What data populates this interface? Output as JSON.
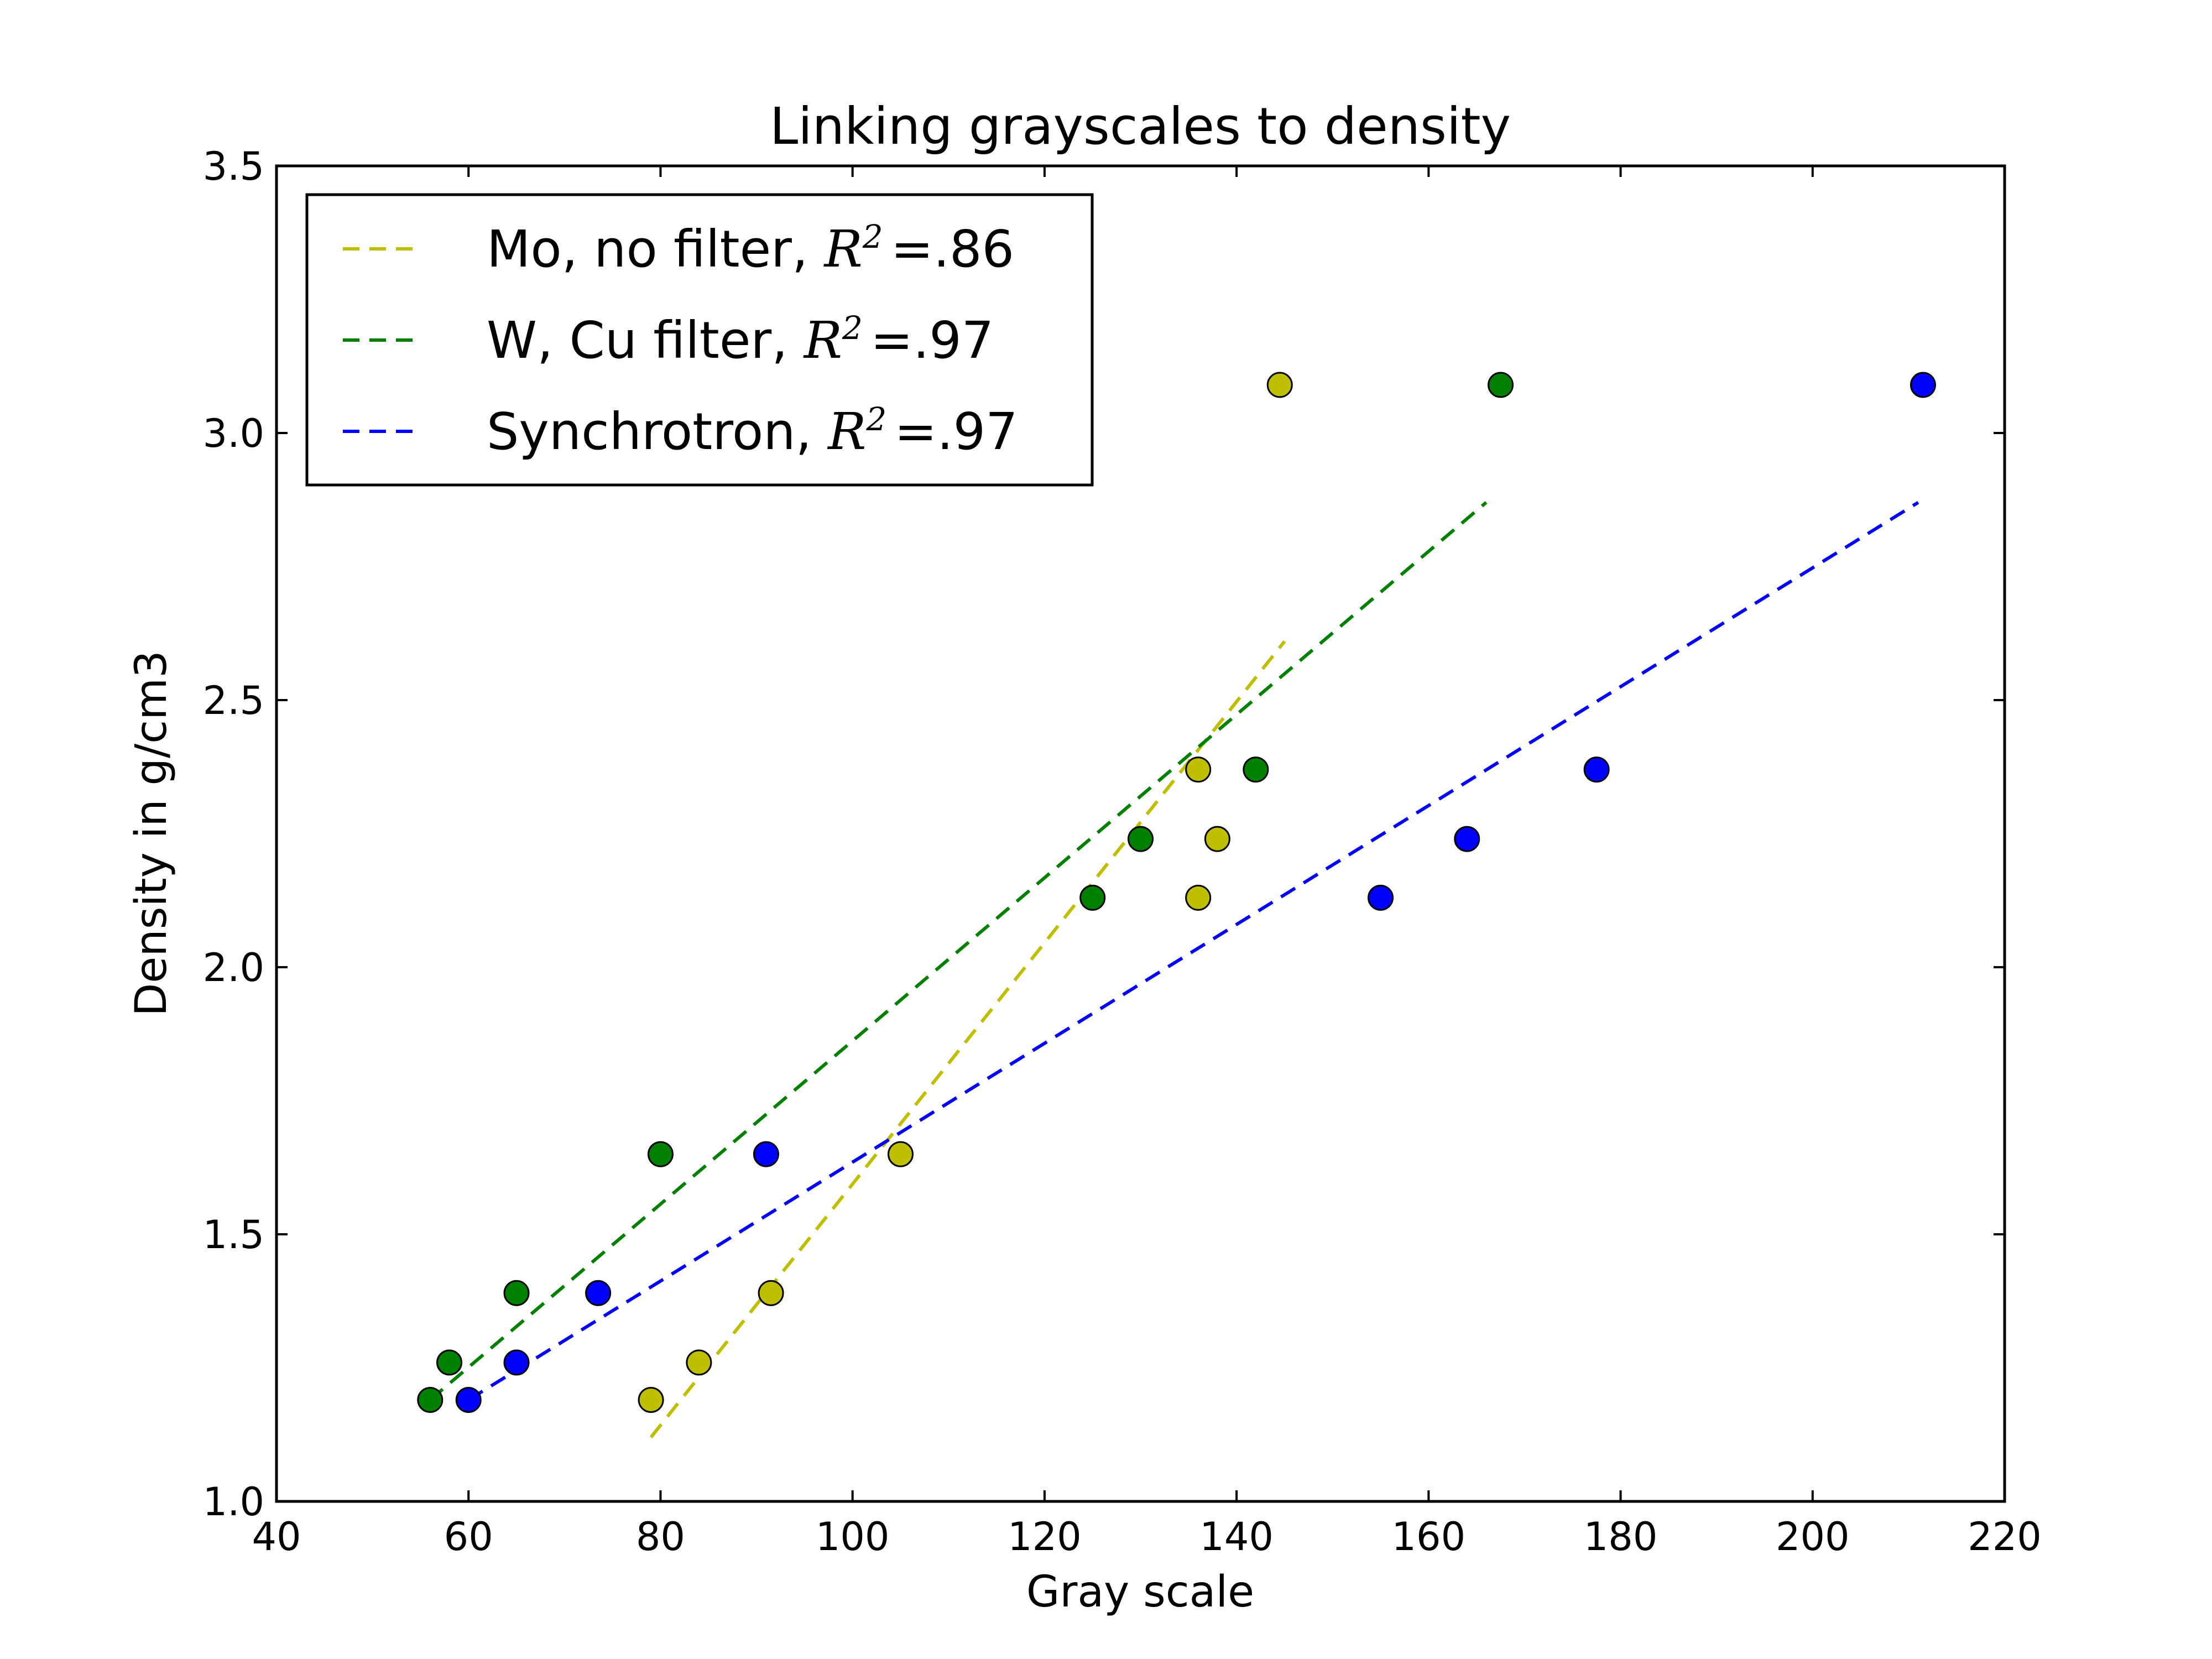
{
  "chart_data": {
    "type": "scatter",
    "title": "Linking grayscales to density",
    "xlabel": "Gray scale",
    "ylabel": "Density in g/cm3",
    "xlim": [
      40,
      220
    ],
    "ylim": [
      1.0,
      3.5
    ],
    "xticks": [
      "40",
      "60",
      "80",
      "100",
      "120",
      "140",
      "160",
      "180",
      "200",
      "220"
    ],
    "yticks": [
      "1.0",
      "1.5",
      "2.0",
      "2.5",
      "3.0",
      "3.5"
    ],
    "legend_position": "upper-left",
    "series": [
      {
        "name": "Mo, no filter",
        "r2_label": "R",
        "r2_exp": "2",
        "r2_value": "=.86",
        "color": "#bfbf00",
        "points": [
          {
            "x": 79,
            "y": 1.19
          },
          {
            "x": 84,
            "y": 1.26
          },
          {
            "x": 91.5,
            "y": 1.39
          },
          {
            "x": 105,
            "y": 1.65
          },
          {
            "x": 136,
            "y": 2.13
          },
          {
            "x": 138,
            "y": 2.24
          },
          {
            "x": 136,
            "y": 2.37
          },
          {
            "x": 144.5,
            "y": 3.09
          }
        ],
        "fit": [
          [
            79,
            1.12
          ],
          [
            145,
            2.61
          ]
        ]
      },
      {
        "name": "W, Cu filter",
        "r2_label": "R",
        "r2_exp": "2",
        "r2_value": "=.97",
        "color": "#008000",
        "points": [
          {
            "x": 56,
            "y": 1.19
          },
          {
            "x": 58,
            "y": 1.26
          },
          {
            "x": 65,
            "y": 1.39
          },
          {
            "x": 80,
            "y": 1.65
          },
          {
            "x": 125,
            "y": 2.13
          },
          {
            "x": 130,
            "y": 2.24
          },
          {
            "x": 142,
            "y": 2.37
          },
          {
            "x": 167.5,
            "y": 3.09
          }
        ],
        "fit": [
          [
            56,
            1.19
          ],
          [
            166,
            2.87
          ]
        ]
      },
      {
        "name": "Synchrotron",
        "r2_label": "R",
        "r2_exp": "2",
        "r2_value": "=.97",
        "color": "#0000ff",
        "points": [
          {
            "x": 60,
            "y": 1.19
          },
          {
            "x": 65,
            "y": 1.26
          },
          {
            "x": 73.5,
            "y": 1.39
          },
          {
            "x": 91,
            "y": 1.65
          },
          {
            "x": 155,
            "y": 2.13
          },
          {
            "x": 164,
            "y": 2.24
          },
          {
            "x": 177.5,
            "y": 2.37
          },
          {
            "x": 211.5,
            "y": 3.09
          }
        ],
        "fit": [
          [
            60,
            1.19
          ],
          [
            211,
            2.87
          ]
        ]
      }
    ]
  }
}
